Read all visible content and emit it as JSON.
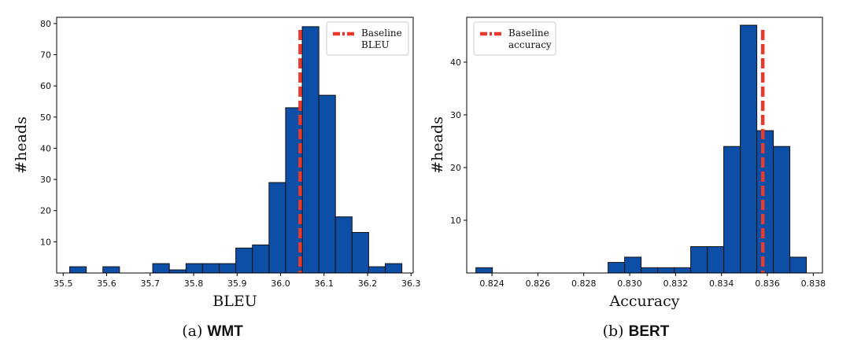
{
  "colors": {
    "bar": "#0d4ea6",
    "bar_edge": "#111111",
    "baseline": "#e8392a"
  },
  "chart_data": [
    {
      "type": "bar",
      "id": "wmt",
      "caption_prefix": "(a)",
      "caption": "WMT",
      "xlabel": "BLEU",
      "ylabel": "#heads",
      "xlim": [
        35.485,
        36.305
      ],
      "ylim": [
        0,
        82
      ],
      "xticks": [
        "35.5",
        "35.6",
        "35.7",
        "35.8",
        "35.9",
        "36.0",
        "36.1",
        "36.2",
        "36.3"
      ],
      "yticks": [
        "10",
        "20",
        "30",
        "40",
        "50",
        "60",
        "70",
        "80"
      ],
      "bin_start": 35.515,
      "bin_width": 0.0382,
      "values": [
        2,
        0,
        2,
        0,
        0,
        3,
        1,
        3,
        3,
        3,
        8,
        9,
        29,
        53,
        79,
        57,
        18,
        13,
        2,
        3
      ],
      "baseline": {
        "value": 36.045,
        "label_lines": [
          "Baseline",
          "BLEU"
        ]
      },
      "legend_position": "top-right"
    },
    {
      "type": "bar",
      "id": "bert",
      "caption_prefix": "(b)",
      "caption": "BERT",
      "xlabel": "Accuracy",
      "ylabel": "#heads",
      "xlim": [
        0.8229,
        0.8384
      ],
      "ylim": [
        0,
        48.5
      ],
      "xticks": [
        "0.824",
        "0.826",
        "0.828",
        "0.830",
        "0.832",
        "0.834",
        "0.836",
        "0.838"
      ],
      "yticks": [
        "10",
        "20",
        "30",
        "40"
      ],
      "bin_start": 0.8233,
      "bin_width": 0.00072,
      "values": [
        1,
        0,
        0,
        0,
        0,
        0,
        0,
        0,
        2,
        3,
        1,
        1,
        1,
        5,
        5,
        24,
        47,
        27,
        24,
        3
      ],
      "baseline": {
        "value": 0.8358,
        "label_lines": [
          "Baseline",
          "accuracy"
        ]
      },
      "legend_position": "top-left"
    }
  ]
}
